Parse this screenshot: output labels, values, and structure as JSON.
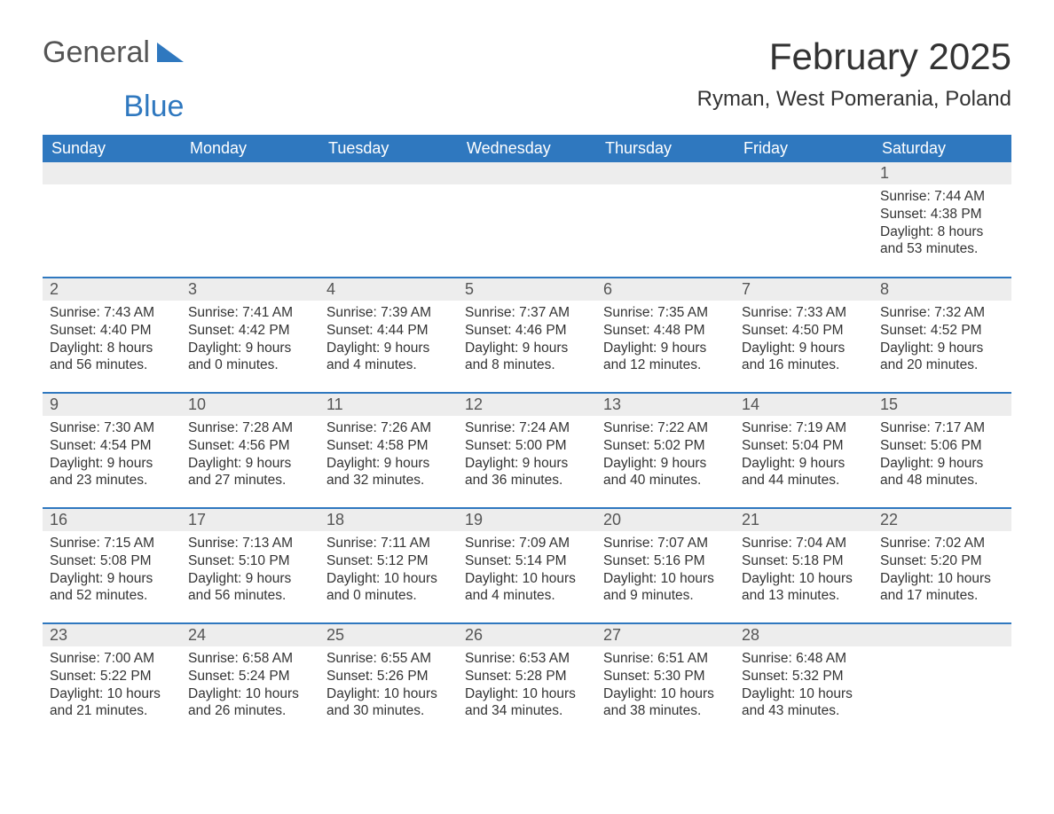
{
  "logo": {
    "text1": "General",
    "text2": "Blue",
    "shape_color": "#2f78bf"
  },
  "colors": {
    "header_bg": "#2f78bf",
    "header_fg": "#ffffff",
    "daynum_bg": "#ededed",
    "row_border": "#2f78bf",
    "text": "#333333"
  },
  "title": "February 2025",
  "location": "Ryman, West Pomerania, Poland",
  "weekdays": [
    "Sunday",
    "Monday",
    "Tuesday",
    "Wednesday",
    "Thursday",
    "Friday",
    "Saturday"
  ],
  "weeks": [
    [
      {
        "empty": true
      },
      {
        "empty": true
      },
      {
        "empty": true
      },
      {
        "empty": true
      },
      {
        "empty": true
      },
      {
        "empty": true
      },
      {
        "day": "1",
        "sunrise": "Sunrise: 7:44 AM",
        "sunset": "Sunset: 4:38 PM",
        "daylight1": "Daylight: 8 hours",
        "daylight2": "and 53 minutes."
      }
    ],
    [
      {
        "day": "2",
        "sunrise": "Sunrise: 7:43 AM",
        "sunset": "Sunset: 4:40 PM",
        "daylight1": "Daylight: 8 hours",
        "daylight2": "and 56 minutes."
      },
      {
        "day": "3",
        "sunrise": "Sunrise: 7:41 AM",
        "sunset": "Sunset: 4:42 PM",
        "daylight1": "Daylight: 9 hours",
        "daylight2": "and 0 minutes."
      },
      {
        "day": "4",
        "sunrise": "Sunrise: 7:39 AM",
        "sunset": "Sunset: 4:44 PM",
        "daylight1": "Daylight: 9 hours",
        "daylight2": "and 4 minutes."
      },
      {
        "day": "5",
        "sunrise": "Sunrise: 7:37 AM",
        "sunset": "Sunset: 4:46 PM",
        "daylight1": "Daylight: 9 hours",
        "daylight2": "and 8 minutes."
      },
      {
        "day": "6",
        "sunrise": "Sunrise: 7:35 AM",
        "sunset": "Sunset: 4:48 PM",
        "daylight1": "Daylight: 9 hours",
        "daylight2": "and 12 minutes."
      },
      {
        "day": "7",
        "sunrise": "Sunrise: 7:33 AM",
        "sunset": "Sunset: 4:50 PM",
        "daylight1": "Daylight: 9 hours",
        "daylight2": "and 16 minutes."
      },
      {
        "day": "8",
        "sunrise": "Sunrise: 7:32 AM",
        "sunset": "Sunset: 4:52 PM",
        "daylight1": "Daylight: 9 hours",
        "daylight2": "and 20 minutes."
      }
    ],
    [
      {
        "day": "9",
        "sunrise": "Sunrise: 7:30 AM",
        "sunset": "Sunset: 4:54 PM",
        "daylight1": "Daylight: 9 hours",
        "daylight2": "and 23 minutes."
      },
      {
        "day": "10",
        "sunrise": "Sunrise: 7:28 AM",
        "sunset": "Sunset: 4:56 PM",
        "daylight1": "Daylight: 9 hours",
        "daylight2": "and 27 minutes."
      },
      {
        "day": "11",
        "sunrise": "Sunrise: 7:26 AM",
        "sunset": "Sunset: 4:58 PM",
        "daylight1": "Daylight: 9 hours",
        "daylight2": "and 32 minutes."
      },
      {
        "day": "12",
        "sunrise": "Sunrise: 7:24 AM",
        "sunset": "Sunset: 5:00 PM",
        "daylight1": "Daylight: 9 hours",
        "daylight2": "and 36 minutes."
      },
      {
        "day": "13",
        "sunrise": "Sunrise: 7:22 AM",
        "sunset": "Sunset: 5:02 PM",
        "daylight1": "Daylight: 9 hours",
        "daylight2": "and 40 minutes."
      },
      {
        "day": "14",
        "sunrise": "Sunrise: 7:19 AM",
        "sunset": "Sunset: 5:04 PM",
        "daylight1": "Daylight: 9 hours",
        "daylight2": "and 44 minutes."
      },
      {
        "day": "15",
        "sunrise": "Sunrise: 7:17 AM",
        "sunset": "Sunset: 5:06 PM",
        "daylight1": "Daylight: 9 hours",
        "daylight2": "and 48 minutes."
      }
    ],
    [
      {
        "day": "16",
        "sunrise": "Sunrise: 7:15 AM",
        "sunset": "Sunset: 5:08 PM",
        "daylight1": "Daylight: 9 hours",
        "daylight2": "and 52 minutes."
      },
      {
        "day": "17",
        "sunrise": "Sunrise: 7:13 AM",
        "sunset": "Sunset: 5:10 PM",
        "daylight1": "Daylight: 9 hours",
        "daylight2": "and 56 minutes."
      },
      {
        "day": "18",
        "sunrise": "Sunrise: 7:11 AM",
        "sunset": "Sunset: 5:12 PM",
        "daylight1": "Daylight: 10 hours",
        "daylight2": "and 0 minutes."
      },
      {
        "day": "19",
        "sunrise": "Sunrise: 7:09 AM",
        "sunset": "Sunset: 5:14 PM",
        "daylight1": "Daylight: 10 hours",
        "daylight2": "and 4 minutes."
      },
      {
        "day": "20",
        "sunrise": "Sunrise: 7:07 AM",
        "sunset": "Sunset: 5:16 PM",
        "daylight1": "Daylight: 10 hours",
        "daylight2": "and 9 minutes."
      },
      {
        "day": "21",
        "sunrise": "Sunrise: 7:04 AM",
        "sunset": "Sunset: 5:18 PM",
        "daylight1": "Daylight: 10 hours",
        "daylight2": "and 13 minutes."
      },
      {
        "day": "22",
        "sunrise": "Sunrise: 7:02 AM",
        "sunset": "Sunset: 5:20 PM",
        "daylight1": "Daylight: 10 hours",
        "daylight2": "and 17 minutes."
      }
    ],
    [
      {
        "day": "23",
        "sunrise": "Sunrise: 7:00 AM",
        "sunset": "Sunset: 5:22 PM",
        "daylight1": "Daylight: 10 hours",
        "daylight2": "and 21 minutes."
      },
      {
        "day": "24",
        "sunrise": "Sunrise: 6:58 AM",
        "sunset": "Sunset: 5:24 PM",
        "daylight1": "Daylight: 10 hours",
        "daylight2": "and 26 minutes."
      },
      {
        "day": "25",
        "sunrise": "Sunrise: 6:55 AM",
        "sunset": "Sunset: 5:26 PM",
        "daylight1": "Daylight: 10 hours",
        "daylight2": "and 30 minutes."
      },
      {
        "day": "26",
        "sunrise": "Sunrise: 6:53 AM",
        "sunset": "Sunset: 5:28 PM",
        "daylight1": "Daylight: 10 hours",
        "daylight2": "and 34 minutes."
      },
      {
        "day": "27",
        "sunrise": "Sunrise: 6:51 AM",
        "sunset": "Sunset: 5:30 PM",
        "daylight1": "Daylight: 10 hours",
        "daylight2": "and 38 minutes."
      },
      {
        "day": "28",
        "sunrise": "Sunrise: 6:48 AM",
        "sunset": "Sunset: 5:32 PM",
        "daylight1": "Daylight: 10 hours",
        "daylight2": "and 43 minutes."
      },
      {
        "empty": true
      }
    ]
  ]
}
